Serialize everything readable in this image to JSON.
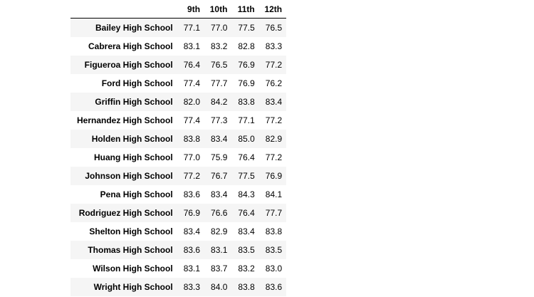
{
  "table": {
    "columns": [
      "",
      "9th",
      "10th",
      "11th",
      "12th"
    ],
    "rows": [
      {
        "school": "Bailey High School",
        "values": [
          "77.1",
          "77.0",
          "77.5",
          "76.5"
        ]
      },
      {
        "school": "Cabrera High School",
        "values": [
          "83.1",
          "83.2",
          "82.8",
          "83.3"
        ]
      },
      {
        "school": "Figueroa High School",
        "values": [
          "76.4",
          "76.5",
          "76.9",
          "77.2"
        ]
      },
      {
        "school": "Ford High School",
        "values": [
          "77.4",
          "77.7",
          "76.9",
          "76.2"
        ]
      },
      {
        "school": "Griffin High School",
        "values": [
          "82.0",
          "84.2",
          "83.8",
          "83.4"
        ]
      },
      {
        "school": "Hernandez High School",
        "values": [
          "77.4",
          "77.3",
          "77.1",
          "77.2"
        ]
      },
      {
        "school": "Holden High School",
        "values": [
          "83.8",
          "83.4",
          "85.0",
          "82.9"
        ]
      },
      {
        "school": "Huang High School",
        "values": [
          "77.0",
          "75.9",
          "76.4",
          "77.2"
        ]
      },
      {
        "school": "Johnson High School",
        "values": [
          "77.2",
          "76.7",
          "77.5",
          "76.9"
        ]
      },
      {
        "school": "Pena High School",
        "values": [
          "83.6",
          "83.4",
          "84.3",
          "84.1"
        ]
      },
      {
        "school": "Rodriguez High School",
        "values": [
          "76.9",
          "76.6",
          "76.4",
          "77.7"
        ]
      },
      {
        "school": "Shelton High School",
        "values": [
          "83.4",
          "82.9",
          "83.4",
          "83.8"
        ]
      },
      {
        "school": "Thomas High School",
        "values": [
          "83.6",
          "83.1",
          "83.5",
          "83.5"
        ]
      },
      {
        "school": "Wilson High School",
        "values": [
          "83.1",
          "83.7",
          "83.2",
          "83.0"
        ]
      },
      {
        "school": "Wright High School",
        "values": [
          "83.3",
          "84.0",
          "83.8",
          "83.6"
        ]
      }
    ]
  }
}
